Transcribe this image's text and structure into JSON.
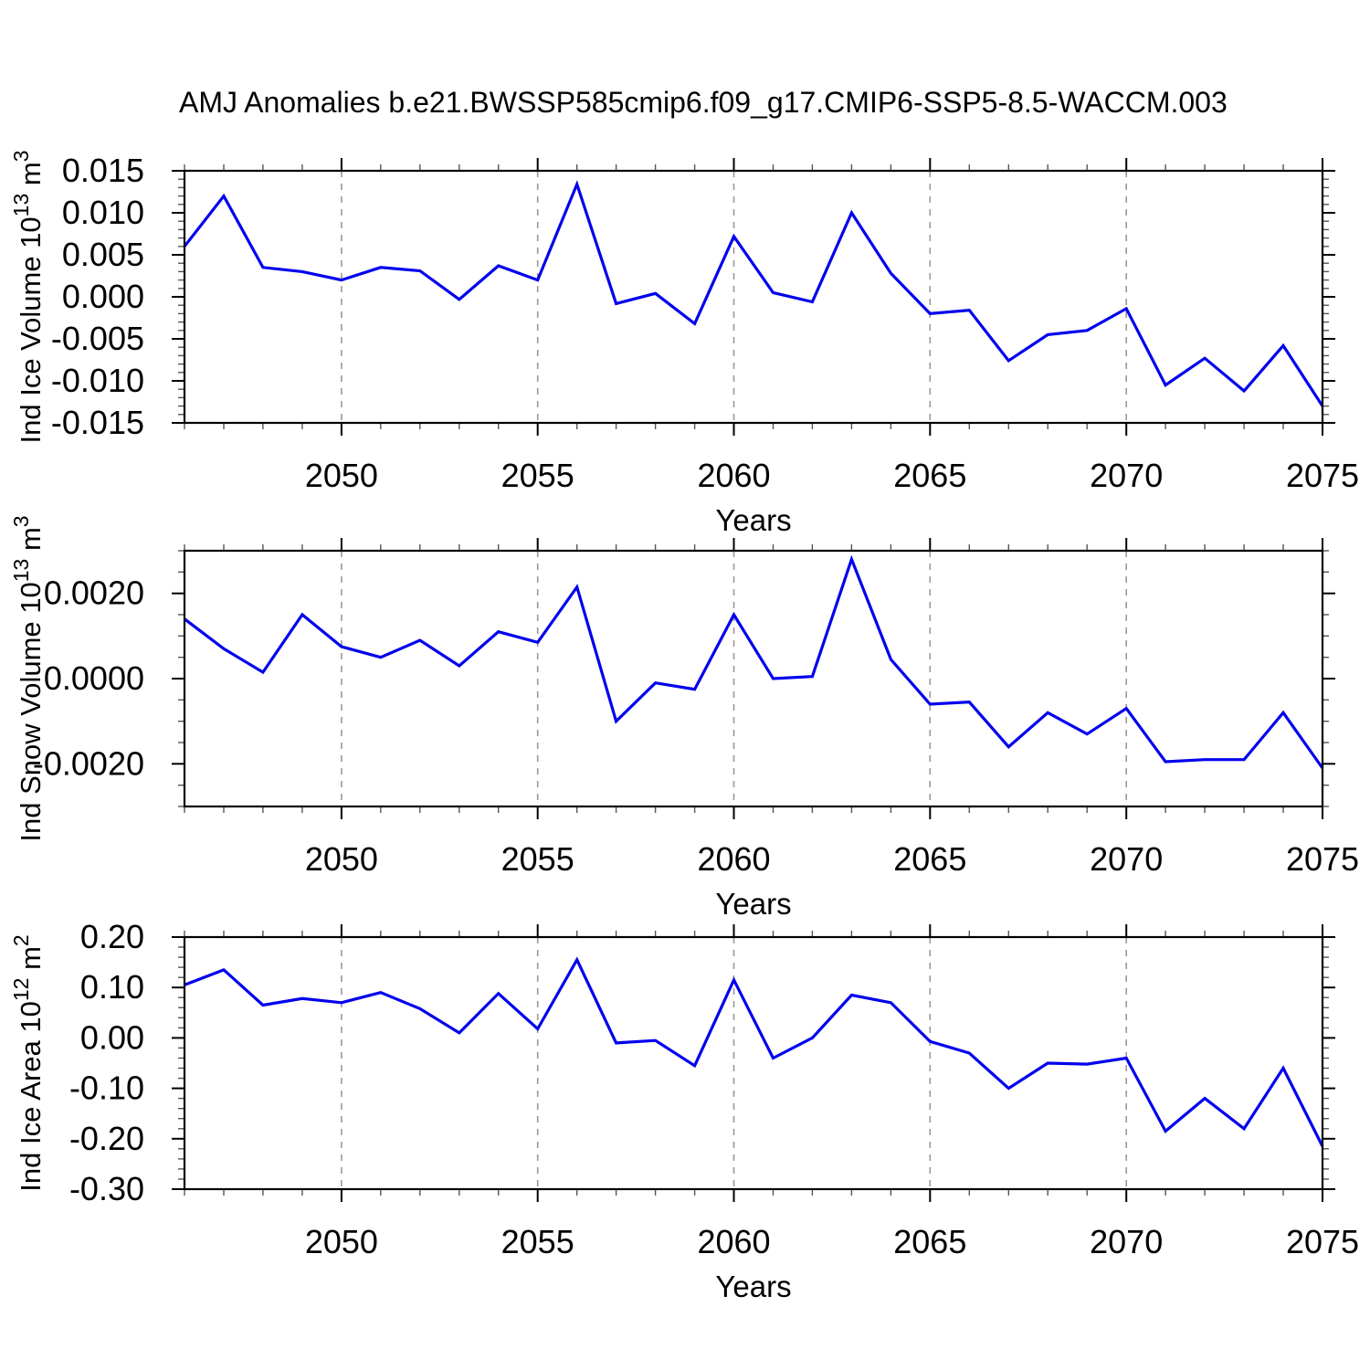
{
  "title": "AMJ Anomalies b.e21.BWSSP585cmip6.f09_g17.CMIP6-SSP5-8.5-WACCM.003",
  "figure": {
    "background": "#ffffff",
    "line_color": "#0000ee",
    "grid_color": "#999999",
    "axis_color": "#000000",
    "minor_tick_color": "#555555"
  },
  "chart_data": [
    {
      "type": "line",
      "name": "ind-ice-volume",
      "xlabel": "Years",
      "ylabel_parts": [
        {
          "text": "Ind Ice Volume 10"
        },
        {
          "sup": "13"
        },
        {
          "text": " m"
        },
        {
          "sup": "3"
        }
      ],
      "x": [
        2046,
        2047,
        2048,
        2049,
        2050,
        2051,
        2052,
        2053,
        2054,
        2055,
        2056,
        2057,
        2058,
        2059,
        2060,
        2061,
        2062,
        2063,
        2064,
        2065,
        2066,
        2067,
        2068,
        2069,
        2070,
        2071,
        2072,
        2073,
        2074,
        2075
      ],
      "values": [
        0.006,
        0.012,
        0.0035,
        0.003,
        0.002,
        0.0035,
        0.0031,
        -0.0003,
        0.0037,
        0.002,
        0.0134,
        -0.0008,
        0.0004,
        -0.0032,
        0.0072,
        0.0005,
        -0.0006,
        0.01,
        0.0028,
        -0.002,
        -0.0016,
        -0.0076,
        -0.0045,
        -0.004,
        -0.0014,
        -0.0105,
        -0.0073,
        -0.0112,
        -0.0058,
        -0.013
      ],
      "xlim": [
        2046,
        2075
      ],
      "ylim": [
        -0.015,
        0.015
      ],
      "xtick_values": [
        2050,
        2055,
        2060,
        2065,
        2070,
        2075
      ],
      "xtick_labels": [
        "2050",
        "2055",
        "2060",
        "2065",
        "2070",
        "2075"
      ],
      "xminor_step": 1,
      "ytick_values": [
        0.015,
        0.01,
        0.005,
        0,
        -0.005,
        -0.01,
        -0.015
      ],
      "ytick_labels": [
        "0.015",
        "0.010",
        "0.005",
        "0.000",
        "-0.005",
        "-0.010",
        "-0.015"
      ],
      "yminor_step": 0.001,
      "grid_x": [
        2050,
        2055,
        2060,
        2065,
        2070
      ],
      "grid_on": "vertical-dashed",
      "legend": "none"
    },
    {
      "type": "line",
      "name": "ind-snow-volume",
      "xlabel": "Years",
      "ylabel_parts": [
        {
          "text": "Ind Snow Volume 10"
        },
        {
          "sup": "13"
        },
        {
          "text": " m"
        },
        {
          "sup": "3"
        }
      ],
      "x": [
        2046,
        2047,
        2048,
        2049,
        2050,
        2051,
        2052,
        2053,
        2054,
        2055,
        2056,
        2057,
        2058,
        2059,
        2060,
        2061,
        2062,
        2063,
        2064,
        2065,
        2066,
        2067,
        2068,
        2069,
        2070,
        2071,
        2072,
        2073,
        2074,
        2075
      ],
      "values": [
        0.0014,
        0.0007,
        0.00015,
        0.0015,
        0.00075,
        0.0005,
        0.0009,
        0.0003,
        0.0011,
        0.00085,
        0.00215,
        -0.001,
        -0.0001,
        -0.00025,
        0.0015,
        0.0,
        5e-05,
        0.0028,
        0.00045,
        -0.0006,
        -0.00055,
        -0.0016,
        -0.0008,
        -0.0013,
        -0.0007,
        -0.00195,
        -0.0019,
        -0.0019,
        -0.0008,
        -0.0021
      ],
      "xlim": [
        2046,
        2075
      ],
      "ylim": [
        -0.003,
        0.003
      ],
      "xtick_values": [
        2050,
        2055,
        2060,
        2065,
        2070,
        2075
      ],
      "xtick_labels": [
        "2050",
        "2055",
        "2060",
        "2065",
        "2070",
        "2075"
      ],
      "xminor_step": 1,
      "ytick_values": [
        0.002,
        0,
        -0.002
      ],
      "ytick_labels": [
        "0.0020",
        "0.0000",
        "-0.0020"
      ],
      "yminor_step": 0.0005,
      "grid_x": [
        2050,
        2055,
        2060,
        2065,
        2070
      ],
      "grid_on": "vertical-dashed",
      "legend": "none"
    },
    {
      "type": "line",
      "name": "ind-ice-area",
      "xlabel": "Years",
      "ylabel_parts": [
        {
          "text": "Ind Ice Area 10"
        },
        {
          "sup": "12"
        },
        {
          "text": " m"
        },
        {
          "sup": "2"
        }
      ],
      "x": [
        2046,
        2047,
        2048,
        2049,
        2050,
        2051,
        2052,
        2053,
        2054,
        2055,
        2056,
        2057,
        2058,
        2059,
        2060,
        2061,
        2062,
        2063,
        2064,
        2065,
        2066,
        2067,
        2068,
        2069,
        2070,
        2071,
        2072,
        2073,
        2074,
        2075
      ],
      "values": [
        0.105,
        0.135,
        0.065,
        0.078,
        0.07,
        0.09,
        0.058,
        0.01,
        0.088,
        0.018,
        0.155,
        -0.01,
        -0.005,
        -0.055,
        0.115,
        -0.04,
        0.0,
        0.085,
        0.07,
        -0.007,
        -0.03,
        -0.1,
        -0.05,
        -0.052,
        -0.04,
        -0.185,
        -0.12,
        -0.18,
        -0.06,
        -0.215
      ],
      "xlim": [
        2046,
        2075
      ],
      "ylim": [
        -0.3,
        0.2
      ],
      "xtick_values": [
        2050,
        2055,
        2060,
        2065,
        2070,
        2075
      ],
      "xtick_labels": [
        "2050",
        "2055",
        "2060",
        "2065",
        "2070",
        "2075"
      ],
      "xminor_step": 1,
      "ytick_values": [
        0.2,
        0.1,
        0,
        -0.1,
        -0.2,
        -0.3
      ],
      "ytick_labels": [
        "0.20",
        "0.10",
        "0.00",
        "-0.10",
        "-0.20",
        "-0.30"
      ],
      "yminor_step": 0.02,
      "grid_x": [
        2050,
        2055,
        2060,
        2065,
        2070
      ],
      "grid_on": "vertical-dashed",
      "legend": "none"
    }
  ]
}
